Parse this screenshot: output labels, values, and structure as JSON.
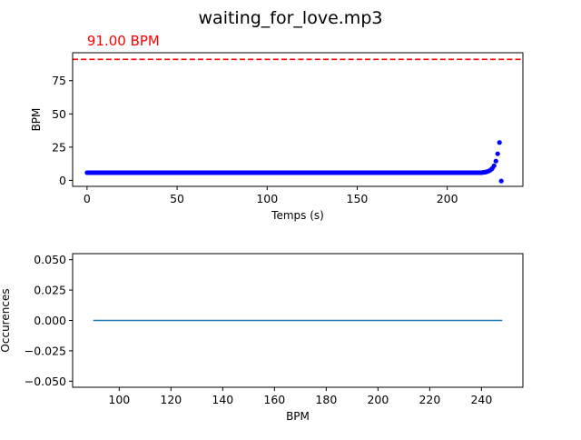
{
  "figure": {
    "title": "waiting_for_love.mp3"
  },
  "chart_data": [
    {
      "type": "scatter",
      "xlabel": "Temps (s)",
      "ylabel": "BPM",
      "xlim": [
        -8,
        242
      ],
      "ylim": [
        -4.5,
        96
      ],
      "xticks": [
        0,
        50,
        100,
        150,
        200
      ],
      "yticks": [
        0,
        25,
        50,
        75
      ],
      "marker_color": "#0000ff",
      "reference_line": {
        "value": 91.0,
        "label": "91.00 BPM",
        "color": "#ff0000",
        "style": "dashed"
      },
      "series": [
        {
          "flat_value": 5.8,
          "flat_x_start": 0,
          "flat_x_end": 219,
          "flat_step": 1,
          "tail": [
            {
              "x": 220,
              "y": 6.0
            },
            {
              "x": 221,
              "y": 6.2
            },
            {
              "x": 222,
              "y": 6.5
            },
            {
              "x": 223,
              "y": 7.0
            },
            {
              "x": 224,
              "y": 7.8
            },
            {
              "x": 225,
              "y": 9.0
            },
            {
              "x": 226,
              "y": 11.0
            },
            {
              "x": 227,
              "y": 14.5
            },
            {
              "x": 228,
              "y": 20.0
            },
            {
              "x": 229,
              "y": 28.5
            },
            {
              "x": 230,
              "y": -0.5
            }
          ]
        }
      ]
    },
    {
      "type": "line",
      "xlabel": "BPM",
      "ylabel": "Occurences",
      "xlim": [
        82,
        256
      ],
      "ylim": [
        -0.055,
        0.055
      ],
      "xticks": [
        100,
        120,
        140,
        160,
        180,
        200,
        220,
        240
      ],
      "yticks": [
        -0.05,
        -0.025,
        0.0,
        0.025,
        0.05
      ],
      "ytick_labels": [
        "−0.050",
        "−0.025",
        "0.000",
        "0.025",
        "0.050"
      ],
      "line_color": "#1f77b4",
      "series": [
        {
          "x": [
            90,
            248
          ],
          "y": [
            0,
            0
          ]
        }
      ]
    }
  ]
}
